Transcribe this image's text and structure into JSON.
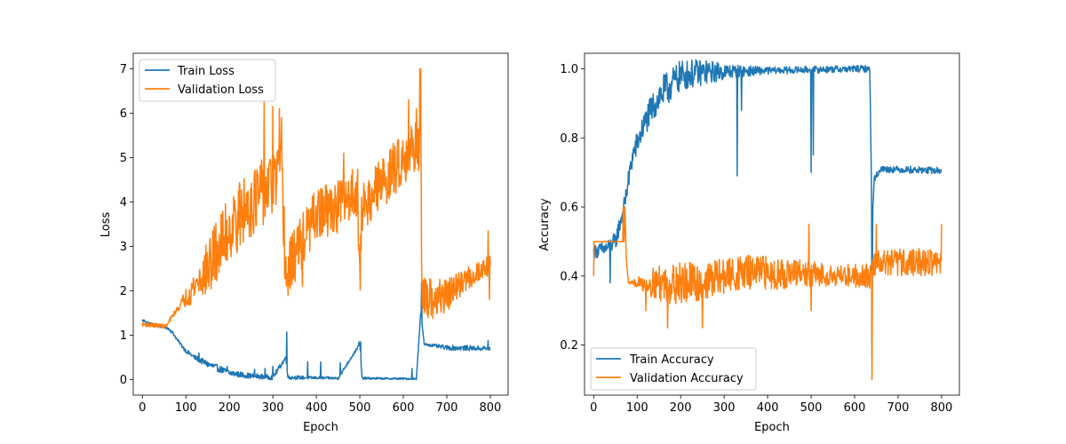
{
  "chart_data": [
    {
      "type": "line",
      "title": "",
      "xlabel": "Epoch",
      "ylabel": "Loss",
      "xlim": [
        -21,
        841
      ],
      "ylim": [
        -0.35,
        7.35
      ],
      "xticks": [
        0,
        100,
        200,
        300,
        400,
        500,
        600,
        700,
        800
      ],
      "yticks": [
        0,
        1,
        2,
        3,
        4,
        5,
        6,
        7
      ],
      "xtick_labels": [
        "0",
        "100",
        "200",
        "300",
        "400",
        "500",
        "600",
        "700",
        "800"
      ],
      "ytick_labels": [
        "0",
        "1",
        "2",
        "3",
        "4",
        "5",
        "6",
        "7"
      ],
      "grid": false,
      "legend": "top-left",
      "series": [
        {
          "name": "Train Loss",
          "color": "#1f77b4",
          "noise": [
            0.03,
            0.03,
            0.08,
            0.06,
            0.05,
            0.03,
            0.03,
            0.02,
            0.02,
            0.06,
            0.05
          ],
          "points": [
            [
              0,
              1.34
            ],
            [
              20,
              1.25
            ],
            [
              45,
              1.2
            ],
            [
              60,
              1.15
            ],
            [
              70,
              1.05
            ],
            [
              80,
              0.9
            ],
            [
              100,
              0.65
            ],
            [
              120,
              0.5
            ],
            [
              150,
              0.35
            ],
            [
              200,
              0.15
            ],
            [
              250,
              0.08
            ],
            [
              300,
              0.05
            ],
            [
              330,
              0.5
            ],
            [
              335,
              0.05
            ],
            [
              400,
              0.04
            ],
            [
              450,
              0.03
            ],
            [
              500,
              0.8
            ],
            [
              505,
              0.03
            ],
            [
              600,
              0.02
            ],
            [
              630,
              0.02
            ],
            [
              640,
              1.5
            ],
            [
              648,
              0.8
            ],
            [
              700,
              0.72
            ],
            [
              800,
              0.7
            ]
          ],
          "spikes": [
            [
              5,
              1.34
            ],
            [
              100,
              0.62
            ],
            [
              130,
              0.6
            ],
            [
              195,
              0.3
            ],
            [
              258,
              0.23
            ],
            [
              282,
              0.25
            ],
            [
              300,
              0.3
            ],
            [
              332,
              1.07
            ],
            [
              380,
              0.4
            ],
            [
              410,
              0.4
            ],
            [
              455,
              0.38
            ],
            [
              480,
              0.5
            ],
            [
              498,
              0.85
            ],
            [
              502,
              0.85
            ],
            [
              620,
              0.25
            ],
            [
              642,
              2.2
            ],
            [
              795,
              0.88
            ]
          ]
        },
        {
          "name": "Validation Loss",
          "color": "#ff7f0e",
          "noise": [
            0.05,
            0.05,
            0.7,
            0.8,
            0.7,
            0.6,
            0.6,
            0.6,
            0.6,
            0.3,
            0.25
          ],
          "points": [
            [
              0,
              1.25
            ],
            [
              30,
              1.22
            ],
            [
              55,
              1.2
            ],
            [
              70,
              1.45
            ],
            [
              100,
              1.85
            ],
            [
              150,
              2.5
            ],
            [
              200,
              3.4
            ],
            [
              250,
              4.0
            ],
            [
              300,
              4.4
            ],
            [
              320,
              4.7
            ],
            [
              330,
              2.3
            ],
            [
              350,
              2.8
            ],
            [
              400,
              3.7
            ],
            [
              450,
              3.9
            ],
            [
              495,
              4.3
            ],
            [
              500,
              2.0
            ],
            [
              505,
              3.9
            ],
            [
              550,
              4.4
            ],
            [
              600,
              5.0
            ],
            [
              630,
              5.3
            ],
            [
              640,
              5.3
            ],
            [
              643,
              1.7
            ],
            [
              700,
              1.9
            ],
            [
              750,
              2.3
            ],
            [
              800,
              2.6
            ]
          ],
          "spikes": [
            [
              280,
              6.25
            ],
            [
              300,
              6.15
            ],
            [
              315,
              6.1
            ],
            [
              320,
              5.9
            ],
            [
              335,
              1.9
            ],
            [
              368,
              2.1
            ],
            [
              410,
              4.3
            ],
            [
              463,
              5.1
            ],
            [
              612,
              6.3
            ],
            [
              630,
              6.1
            ],
            [
              638,
              7.0
            ],
            [
              640,
              7.0
            ],
            [
              648,
              1.5
            ],
            [
              795,
              3.35
            ],
            [
              798,
              1.8
            ]
          ]
        }
      ]
    },
    {
      "type": "line",
      "title": "",
      "xlabel": "Epoch",
      "ylabel": "Accuracy",
      "xlim": [
        -21,
        841
      ],
      "ylim": [
        0.055,
        1.045
      ],
      "xticks": [
        0,
        100,
        200,
        300,
        400,
        500,
        600,
        700,
        800
      ],
      "yticks": [
        0.2,
        0.4,
        0.6,
        0.8,
        1.0
      ],
      "xtick_labels": [
        "0",
        "100",
        "200",
        "300",
        "400",
        "500",
        "600",
        "700",
        "800"
      ],
      "ytick_labels": [
        "0.2",
        "0.4",
        "0.6",
        "0.8",
        "1.0"
      ],
      "grid": false,
      "legend": "bottom-left",
      "series": [
        {
          "name": "Train Accuracy",
          "color": "#1f77b4",
          "noise": [
            0.02,
            0.03,
            0.05,
            0.04,
            0.02,
            0.01,
            0.01,
            0.01,
            0.01,
            0.01,
            0.01
          ],
          "points": [
            [
              0,
              0.47
            ],
            [
              30,
              0.48
            ],
            [
              50,
              0.5
            ],
            [
              70,
              0.6
            ],
            [
              90,
              0.75
            ],
            [
              120,
              0.85
            ],
            [
              150,
              0.92
            ],
            [
              200,
              0.98
            ],
            [
              250,
              0.99
            ],
            [
              400,
              0.995
            ],
            [
              600,
              1.0
            ],
            [
              635,
              1.0
            ],
            [
              640,
              0.55
            ],
            [
              645,
              0.68
            ],
            [
              660,
              0.71
            ],
            [
              800,
              0.705
            ]
          ],
          "spikes": [
            [
              38,
              0.38
            ],
            [
              330,
              0.69
            ],
            [
              340,
              0.88
            ],
            [
              500,
              0.7
            ],
            [
              505,
              0.75
            ],
            [
              640,
              0.17
            ],
            [
              641,
              0.45
            ]
          ]
        },
        {
          "name": "Validation Accuracy",
          "color": "#ff7f0e",
          "noise": [
            0,
            0,
            0.06,
            0.06,
            0.05,
            0.05,
            0.04,
            0.03,
            0.04,
            0.04,
            0.04
          ],
          "points": [
            [
              0,
              0.5
            ],
            [
              70,
              0.5
            ],
            [
              72,
              0.6
            ],
            [
              75,
              0.45
            ],
            [
              80,
              0.38
            ],
            [
              150,
              0.38
            ],
            [
              250,
              0.38
            ],
            [
              300,
              0.4
            ],
            [
              350,
              0.41
            ],
            [
              640,
              0.4
            ],
            [
              645,
              0.44
            ],
            [
              700,
              0.44
            ],
            [
              800,
              0.44
            ]
          ],
          "spikes": [
            [
              0,
              0.4
            ],
            [
              68,
              0.6
            ],
            [
              120,
              0.3
            ],
            [
              170,
              0.25
            ],
            [
              250,
              0.25
            ],
            [
              350,
              0.45
            ],
            [
              495,
              0.55
            ],
            [
              500,
              0.3
            ],
            [
              640,
              0.1
            ],
            [
              650,
              0.55
            ],
            [
              800,
              0.55
            ]
          ]
        }
      ]
    }
  ]
}
